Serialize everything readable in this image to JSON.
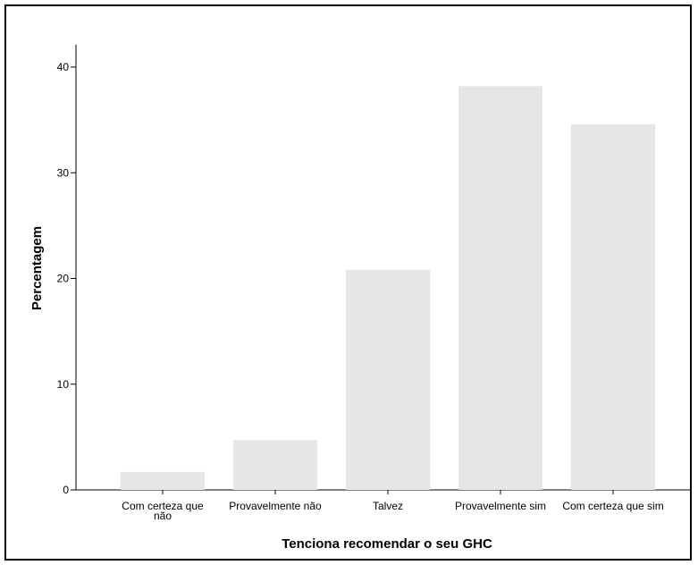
{
  "chart_data": {
    "type": "bar",
    "xlabel": "Tenciona recomendar o seu GHC",
    "ylabel": "Percentagem",
    "categories": [
      [
        "Com certeza que",
        "não"
      ],
      [
        "Provavelmente não"
      ],
      [
        "Talvez"
      ],
      [
        "Provavelmente sim"
      ],
      [
        "Com certeza que sim"
      ]
    ],
    "values": [
      1.7,
      4.7,
      20.8,
      38.2,
      34.6
    ],
    "ylim": [
      0,
      42
    ],
    "yticks": [
      0,
      10,
      20,
      30,
      40
    ],
    "bar_color": "#e6e6e6",
    "grid": false
  }
}
